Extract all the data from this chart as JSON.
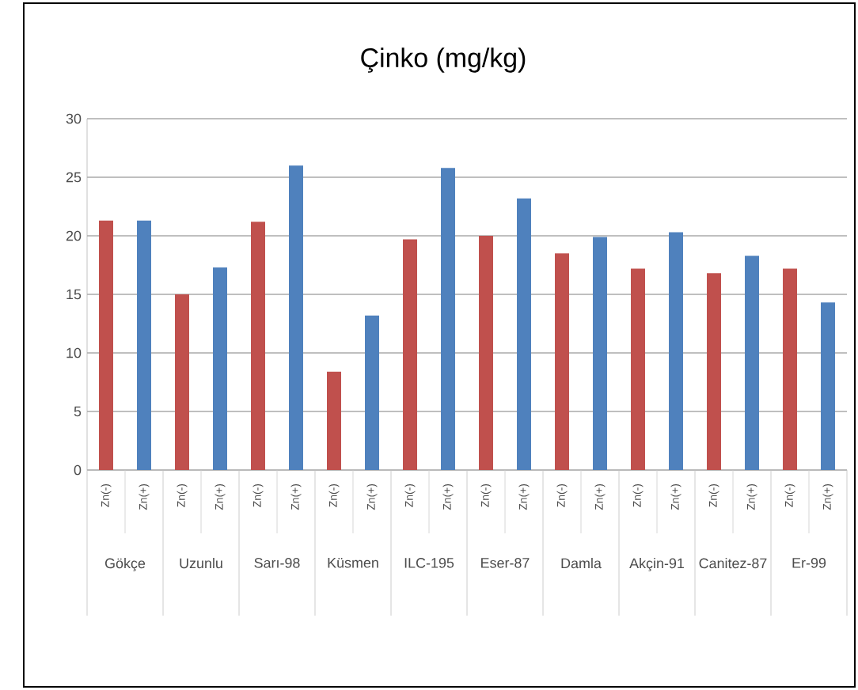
{
  "chart_data": {
    "type": "bar",
    "title": "Çinko (mg/kg)",
    "categories": [
      "Gökçe",
      "Uzunlu",
      "Sarı-98",
      "Küsmen",
      "ILC-195",
      "Eser-87",
      "Damla",
      "Akçin-91",
      "Canitez-87",
      "Er-99"
    ],
    "series": [
      {
        "name": "Zn(-)",
        "color": "#c0504d",
        "values": [
          21.3,
          15.0,
          21.2,
          8.4,
          19.7,
          20.0,
          18.5,
          17.2,
          16.8,
          17.2
        ]
      },
      {
        "name": "Zn(+)",
        "color": "#4f81bd",
        "values": [
          21.3,
          17.3,
          26.0,
          13.2,
          25.8,
          23.2,
          19.9,
          20.3,
          18.3,
          14.3
        ]
      }
    ],
    "ylim": [
      0,
      30
    ],
    "yticks": [
      0,
      5,
      10,
      15,
      20,
      25,
      30
    ],
    "grid": "y",
    "legend": false
  }
}
